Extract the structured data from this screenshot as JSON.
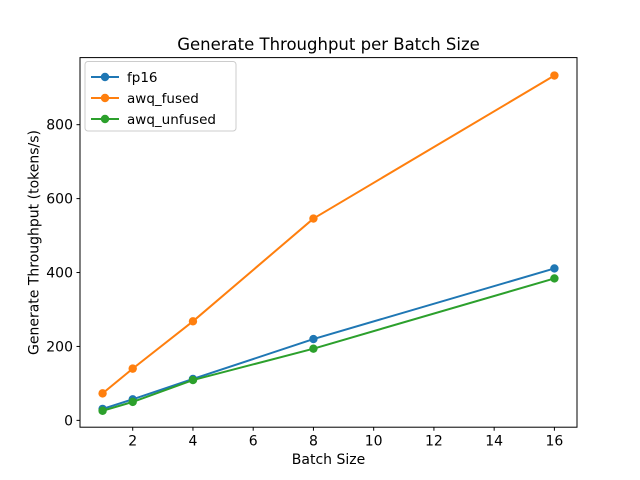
{
  "chart_data": {
    "type": "line",
    "title": "Generate Throughput per Batch Size",
    "xlabel": "Batch Size",
    "ylabel": "Generate Throughput (tokens/s)",
    "x": [
      1,
      2,
      4,
      8,
      16
    ],
    "series": [
      {
        "name": "fp16",
        "color": "#1f77b4",
        "values": [
          31,
          57,
          112,
          220,
          411
        ]
      },
      {
        "name": "awq_fused",
        "color": "#ff7f0e",
        "values": [
          73,
          140,
          268,
          546,
          933
        ]
      },
      {
        "name": "awq_unfused",
        "color": "#2ca02c",
        "values": [
          26,
          50,
          109,
          194,
          384
        ]
      }
    ],
    "xticks": [
      2,
      4,
      6,
      8,
      10,
      12,
      14,
      16
    ],
    "yticks": [
      0,
      200,
      400,
      600,
      800
    ],
    "xlim": [
      0.25,
      16.75
    ],
    "ylim": [
      -18.5,
      981.5
    ],
    "grid": false,
    "marker": "o",
    "legend_position": "upper left",
    "legend_border_color": "#cccccc",
    "axis_color": "#000000",
    "background": "#ffffff"
  }
}
